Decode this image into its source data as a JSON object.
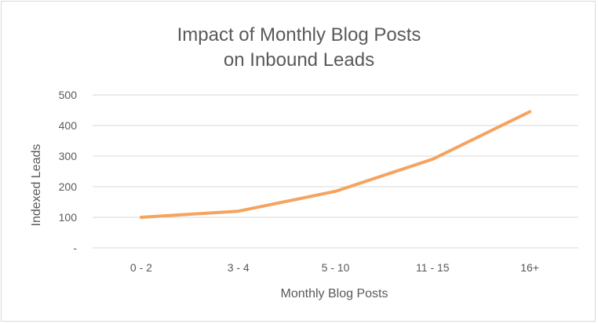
{
  "chart_data": {
    "type": "line",
    "title_lines": [
      "Impact of Monthly Blog Posts",
      "on Inbound Leads"
    ],
    "xlabel": "Monthly Blog Posts",
    "ylabel": "Indexed Leads",
    "categories": [
      "0 - 2",
      "3 - 4",
      "5 - 10",
      "11 - 15",
      "16+"
    ],
    "y_ticks": [
      "-",
      "100",
      "200",
      "300",
      "400",
      "500"
    ],
    "ylim": [
      0,
      500
    ],
    "grid": true,
    "legend": "none",
    "series": [
      {
        "values": [
          100,
          120,
          185,
          290,
          445
        ],
        "color": "#F4A460"
      }
    ]
  }
}
